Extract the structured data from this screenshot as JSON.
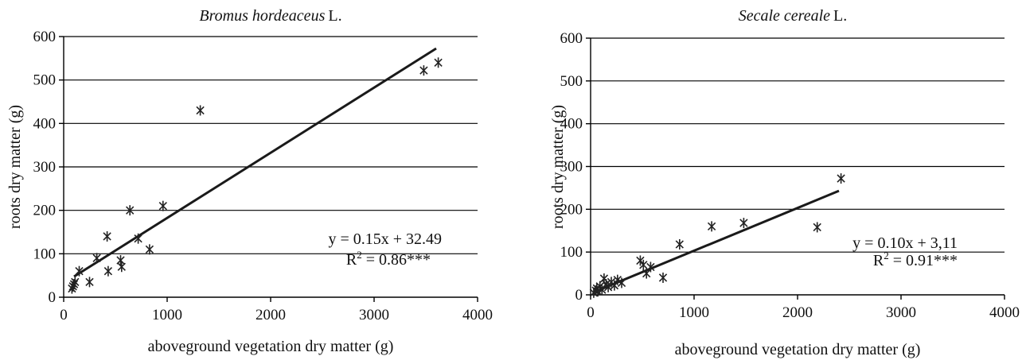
{
  "chart_data": [
    {
      "type": "scatter",
      "title_species": "Bromus hordeaceus",
      "title_author": "L.",
      "xlabel": "aboveground vegetation dry matter (g)",
      "ylabel": "roots dry matter  (g)",
      "xlim": [
        0,
        4000
      ],
      "ylim": [
        0,
        600
      ],
      "xticks": [
        "0",
        "1000",
        "2000",
        "3000",
        "4000"
      ],
      "yticks": [
        "0",
        "100",
        "200",
        "300",
        "400",
        "500",
        "600"
      ],
      "grid": "horizontal",
      "marker": "asterisk",
      "points": [
        {
          "x": 80,
          "y": 20
        },
        {
          "x": 90,
          "y": 25
        },
        {
          "x": 100,
          "y": 30
        },
        {
          "x": 110,
          "y": 35
        },
        {
          "x": 150,
          "y": 60
        },
        {
          "x": 250,
          "y": 35
        },
        {
          "x": 320,
          "y": 90
        },
        {
          "x": 420,
          "y": 140
        },
        {
          "x": 430,
          "y": 60
        },
        {
          "x": 550,
          "y": 85
        },
        {
          "x": 560,
          "y": 70
        },
        {
          "x": 640,
          "y": 200
        },
        {
          "x": 720,
          "y": 135
        },
        {
          "x": 830,
          "y": 110
        },
        {
          "x": 960,
          "y": 210
        },
        {
          "x": 1320,
          "y": 430
        },
        {
          "x": 3480,
          "y": 522
        },
        {
          "x": 3620,
          "y": 540
        }
      ],
      "trendline": {
        "slope": 0.15,
        "intercept": 32.49,
        "x_start": 100,
        "x_end": 3600
      },
      "equation": "y = 0.15x + 32.49",
      "r2_prefix": "R",
      "r2_sup": "2",
      "r2_suffix": " = 0.86***"
    },
    {
      "type": "scatter",
      "title_species": "Secale cereale",
      "title_author": "L.",
      "xlabel": "aboveground vegetation dry matter (g)",
      "ylabel": "roots dry matter (g)",
      "xlim": [
        0,
        4000
      ],
      "ylim": [
        0,
        600
      ],
      "xticks": [
        "0",
        "1000",
        "2000",
        "3000",
        "4000"
      ],
      "yticks": [
        "0",
        "100",
        "200",
        "300",
        "400",
        "500",
        "600"
      ],
      "grid": "horizontal",
      "marker": "asterisk",
      "points": [
        {
          "x": 30,
          "y": 5
        },
        {
          "x": 50,
          "y": 10
        },
        {
          "x": 60,
          "y": 15
        },
        {
          "x": 70,
          "y": 8
        },
        {
          "x": 90,
          "y": 20
        },
        {
          "x": 110,
          "y": 12
        },
        {
          "x": 130,
          "y": 38
        },
        {
          "x": 150,
          "y": 25
        },
        {
          "x": 170,
          "y": 18
        },
        {
          "x": 200,
          "y": 30
        },
        {
          "x": 230,
          "y": 22
        },
        {
          "x": 260,
          "y": 35
        },
        {
          "x": 300,
          "y": 28
        },
        {
          "x": 480,
          "y": 80
        },
        {
          "x": 510,
          "y": 70
        },
        {
          "x": 540,
          "y": 50
        },
        {
          "x": 580,
          "y": 65
        },
        {
          "x": 700,
          "y": 40
        },
        {
          "x": 860,
          "y": 118
        },
        {
          "x": 1170,
          "y": 160
        },
        {
          "x": 1480,
          "y": 168
        },
        {
          "x": 2190,
          "y": 158
        },
        {
          "x": 2420,
          "y": 272
        }
      ],
      "trendline": {
        "slope": 0.1,
        "intercept": 3.11,
        "x_start": 30,
        "x_end": 2400
      },
      "equation": "y = 0.10x + 3,11",
      "r2_prefix": "R",
      "r2_sup": "2",
      "r2_suffix": " = 0.91***"
    }
  ]
}
